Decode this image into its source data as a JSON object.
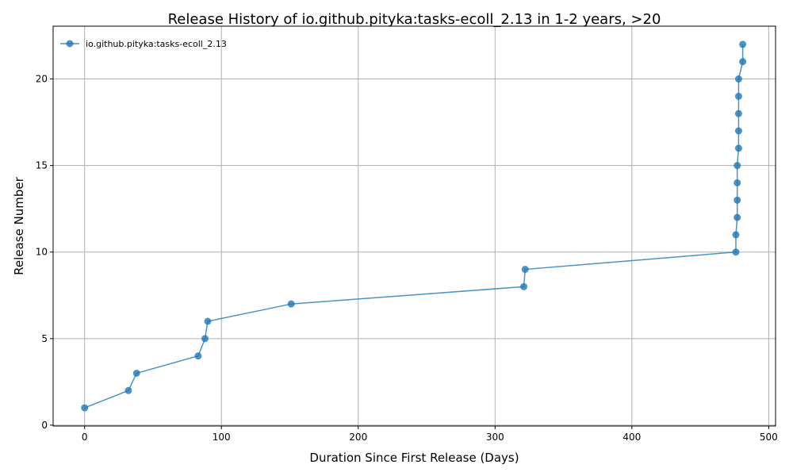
{
  "chart_data": {
    "type": "line",
    "title": "Release History of io.github.pityka:tasks-ecoll_2.13 in 1-2 years, >20",
    "xlabel": "Duration Since First Release (Days)",
    "ylabel": "Release Number",
    "xlim": [
      -23,
      505
    ],
    "ylim": [
      -0.05,
      23.05
    ],
    "xticks": [
      0,
      100,
      200,
      300,
      400,
      500
    ],
    "yticks": [
      0,
      5,
      10,
      15,
      20
    ],
    "grid": true,
    "legend_position": "upper-left",
    "series": [
      {
        "name": "io.github.pityka:tasks-ecoll_2.13",
        "color": "#1f77b4",
        "marker": "circle",
        "x": [
          0,
          32,
          38,
          83,
          88,
          90,
          151,
          321,
          322,
          476,
          476,
          477,
          477,
          477,
          477,
          478,
          478,
          478,
          478,
          478,
          481,
          481
        ],
        "y": [
          1,
          2,
          3,
          4,
          5,
          6,
          7,
          8,
          9,
          10,
          11,
          12,
          13,
          14,
          15,
          16,
          17,
          18,
          19,
          20,
          21,
          22
        ]
      }
    ]
  }
}
